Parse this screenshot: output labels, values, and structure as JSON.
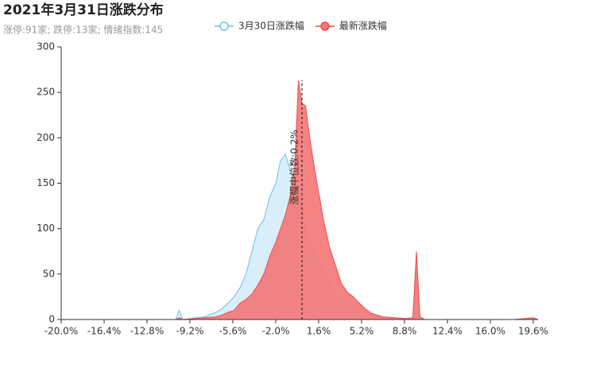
{
  "chart_data": {
    "type": "area",
    "title": "2021年3月31日涨跌分布",
    "subtitle": "涨停:91家; 跌停:13家; 情绪指数:145",
    "x": [
      -20,
      -18,
      -16,
      -14,
      -12,
      -10.4,
      -10.1,
      -9.8,
      -8,
      -7,
      -6.5,
      -6,
      -5.5,
      -5,
      -4.5,
      -4,
      -3.5,
      -3,
      -2.5,
      -2,
      -1.6,
      -1.2,
      -0.8,
      -0.4,
      -0.1,
      0.2,
      0.5,
      0.8,
      1.2,
      1.6,
      2,
      2.5,
      3,
      3.5,
      4,
      4.5,
      5,
      5.5,
      6,
      7,
      8,
      9,
      9.5,
      9.8,
      10.1,
      10.5,
      12,
      14,
      16,
      18,
      19.6,
      20
    ],
    "series": [
      {
        "name": "3月30日涨跌幅",
        "color": "#73c0e8",
        "fill": "#d8eef9",
        "values": [
          0,
          0,
          0,
          0,
          0,
          0,
          10,
          0,
          3,
          8,
          12,
          18,
          25,
          35,
          50,
          75,
          100,
          110,
          135,
          150,
          175,
          182,
          165,
          150,
          140,
          120,
          100,
          85,
          75,
          70,
          50,
          40,
          28,
          22,
          18,
          15,
          18,
          8,
          4,
          2,
          1,
          1,
          2,
          55,
          2,
          0,
          0,
          0,
          0,
          0,
          0,
          0
        ]
      },
      {
        "name": "最新涨跌幅",
        "color": "#ee4f4f",
        "fill": "#f47676",
        "values": [
          0,
          0,
          0,
          0,
          0,
          0,
          2,
          0,
          2,
          3,
          5,
          8,
          10,
          18,
          22,
          28,
          38,
          50,
          70,
          85,
          100,
          115,
          135,
          170,
          263,
          238,
          235,
          205,
          170,
          140,
          110,
          80,
          60,
          40,
          30,
          25,
          18,
          12,
          7,
          3,
          2,
          1,
          2,
          75,
          3,
          0,
          0,
          0,
          0,
          0,
          2,
          0
        ]
      }
    ],
    "xlim": [
      -20,
      20
    ],
    "ylim": [
      0,
      300
    ],
    "xticks": [
      {
        "value": -20,
        "label": "-20.0%"
      },
      {
        "value": -16.4,
        "label": "-16.4%"
      },
      {
        "value": -12.8,
        "label": "-12.8%"
      },
      {
        "value": -9.2,
        "label": "-9.2%"
      },
      {
        "value": -5.6,
        "label": "-5.6%"
      },
      {
        "value": -2,
        "label": "-2.0%"
      },
      {
        "value": 1.6,
        "label": "1.6%"
      },
      {
        "value": 5.2,
        "label": "5.2%"
      },
      {
        "value": 8.8,
        "label": "8.8%"
      },
      {
        "value": 12.4,
        "label": "12.4%"
      },
      {
        "value": 16,
        "label": "16.0%"
      },
      {
        "value": 19.6,
        "label": "19.6%"
      }
    ],
    "yticks": [
      0,
      50,
      100,
      150,
      200,
      250,
      300
    ],
    "median": {
      "value": 0.2,
      "label": "涨幅中位数:0.2%"
    },
    "legend": "top"
  }
}
